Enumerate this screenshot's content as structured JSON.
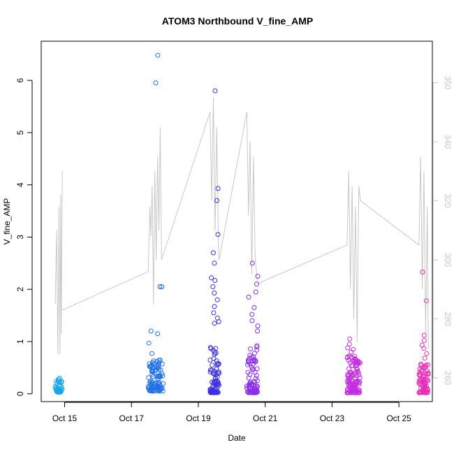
{
  "chart_data": {
    "type": "scatter",
    "title": "ATOM3 Northbound V_fine_AMP",
    "xlabel": "Date",
    "ylabel": "V_fine_AMP",
    "x_tick_labels": [
      "Oct 15",
      "Oct 17",
      "Oct 19",
      "Oct 21",
      "Oct 23",
      "Oct 25"
    ],
    "x_ticks_days": [
      15,
      17,
      19,
      21,
      23,
      25
    ],
    "xlim_days": [
      14.3,
      26.0
    ],
    "ylim": [
      -0.15,
      6.75
    ],
    "y_ticks": [
      0,
      1,
      2,
      3,
      4,
      5,
      6
    ],
    "y_right_ticks": [
      260,
      280,
      300,
      320,
      340,
      360
    ],
    "y_right_lim": [
      252,
      374
    ],
    "right_axis_color": "#c8c8c8",
    "line_color": "#c8c8c8",
    "grid": false,
    "series": [
      {
        "color": "#1aa6e8",
        "clusters": [
          {
            "x_start": 14.72,
            "x_end": 14.93,
            "points_low": 45,
            "low_range": [
              0.03,
              0.3
            ],
            "extra_y": []
          }
        ]
      },
      {
        "color": "#1f6fe8",
        "clusters": [
          {
            "x_start": 17.5,
            "x_end": 17.95,
            "points_low": 90,
            "low_range": [
              0.05,
              0.65
            ],
            "extra_y": [
              1.15,
              2.05,
              1.2,
              0.97,
              0.77,
              2.05,
              5.95,
              6.48
            ]
          }
        ]
      },
      {
        "color": "#3a2fe0",
        "clusters": [
          {
            "x_start": 19.35,
            "x_end": 19.62,
            "points_low": 70,
            "low_range": [
              0.02,
              0.9
            ],
            "extra_y": [
              5.8,
              3.93,
              3.7,
              3.05,
              2.7,
              2.5,
              2.22,
              2.17,
              2.05,
              1.93,
              1.8,
              1.67,
              1.55,
              1.45,
              1.38,
              1.35
            ]
          }
        ]
      },
      {
        "color": "#8a2ee8",
        "clusters": [
          {
            "x_start": 20.45,
            "x_end": 20.78,
            "points_low": 75,
            "low_range": [
              0.02,
              0.9
            ],
            "extra_y": [
              2.5,
              2.25,
              2.1,
              1.95,
              1.85,
              1.65,
              1.52,
              1.4,
              1.3,
              1.2,
              0.92
            ]
          }
        ]
      },
      {
        "color": "#c22ee0",
        "clusters": [
          {
            "x_start": 23.45,
            "x_end": 23.85,
            "points_low": 120,
            "low_range": [
              0.02,
              0.75
            ],
            "extra_y": [
              1.05,
              0.95,
              0.88,
              0.85,
              0.8
            ]
          }
        ]
      },
      {
        "color": "#e62eb8",
        "clusters": [
          {
            "x_start": 25.6,
            "x_end": 25.88,
            "points_low": 80,
            "low_range": [
              0.02,
              0.6
            ],
            "extra_y": [
              2.33,
              1.78,
              1.12,
              1.02,
              0.93,
              0.87,
              0.77,
              0.68
            ]
          }
        ]
      }
    ],
    "line_series": {
      "segments": [
        {
          "x": [
            14.72,
            14.76,
            14.8,
            14.83,
            14.86,
            14.88,
            14.9,
            14.93
          ],
          "y": [
            285,
            310,
            268,
            318,
            268,
            322,
            275,
            330
          ]
        },
        {
          "x": [
            14.93,
            17.5
          ],
          "y": [
            283,
            296
          ]
        },
        {
          "x": [
            17.5,
            17.55,
            17.58,
            17.62,
            17.66,
            17.7,
            17.74,
            17.78,
            17.82,
            17.86,
            17.9
          ],
          "y": [
            296,
            318,
            308,
            325,
            285,
            330,
            300,
            335,
            310,
            345,
            300
          ]
        },
        {
          "x": [
            17.9,
            19.35
          ],
          "y": [
            300,
            350
          ]
        },
        {
          "x": [
            19.35,
            19.4,
            19.45,
            19.5,
            19.55,
            19.6,
            19.62
          ],
          "y": [
            350,
            320,
            355,
            310,
            345,
            305,
            300
          ]
        },
        {
          "x": [
            19.62,
            20.45
          ],
          "y": [
            300,
            350
          ]
        },
        {
          "x": [
            20.45,
            20.5,
            20.55,
            20.6,
            20.65,
            20.7,
            20.78
          ],
          "y": [
            350,
            315,
            340,
            295,
            335,
            300,
            292
          ]
        },
        {
          "x": [
            20.78,
            23.45
          ],
          "y": [
            292,
            305
          ]
        },
        {
          "x": [
            23.45,
            23.5,
            23.55,
            23.6,
            23.65,
            23.7,
            23.75,
            23.8,
            23.85
          ],
          "y": [
            305,
            330,
            290,
            325,
            280,
            318,
            272,
            325,
            320
          ]
        },
        {
          "x": [
            23.85,
            25.6
          ],
          "y": [
            320,
            305
          ]
        },
        {
          "x": [
            25.6,
            25.65,
            25.7,
            25.75,
            25.8,
            25.85,
            25.88
          ],
          "y": [
            305,
            335,
            290,
            330,
            275,
            318,
            270
          ]
        }
      ]
    }
  }
}
